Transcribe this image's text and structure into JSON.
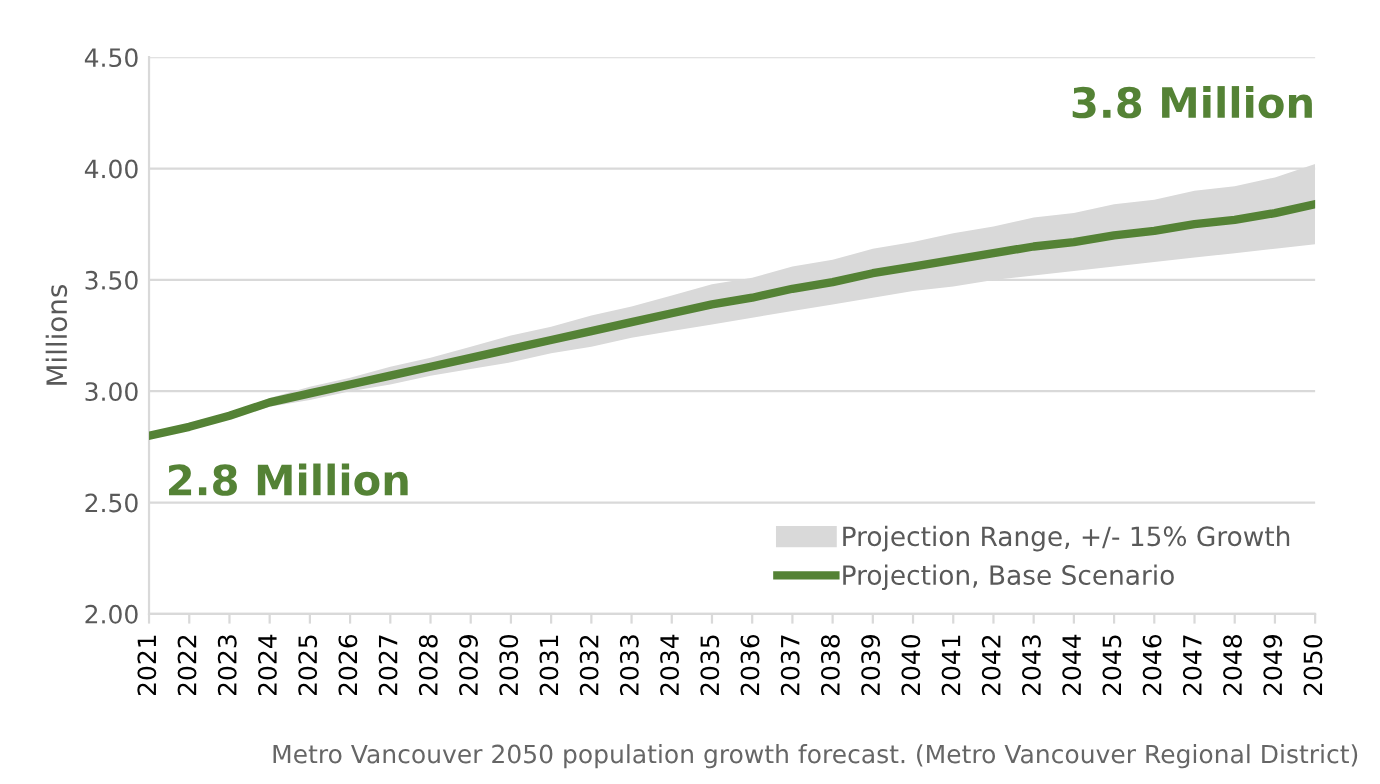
{
  "chart_data": {
    "type": "line",
    "ylabel": "Millions",
    "categories": [
      "2021",
      "2022",
      "2023",
      "2024",
      "2025",
      "2026",
      "2027",
      "2028",
      "2029",
      "2030",
      "2031",
      "2032",
      "2033",
      "2034",
      "2035",
      "2036",
      "2037",
      "2038",
      "2039",
      "2040",
      "2041",
      "2042",
      "2043",
      "2044",
      "2045",
      "2046",
      "2047",
      "2048",
      "2049",
      "2050"
    ],
    "series": [
      {
        "name": "Projection Range, +/- 15% Growth",
        "type": "area",
        "color": "#d9d9d9",
        "values": [
          null,
          null,
          null,
          null,
          null,
          null,
          null,
          null,
          null,
          null,
          null,
          null,
          null,
          null,
          null,
          null,
          null,
          null,
          null,
          null,
          null,
          null,
          null,
          null,
          null,
          null,
          null,
          null,
          null,
          null
        ]
      },
      {
        "name": "Projection, Base Scenario",
        "color": "#548235",
        "values": [
          2.8,
          2.84,
          2.89,
          2.95,
          2.99,
          3.03,
          3.07,
          3.11,
          3.15,
          3.19,
          3.23,
          3.27,
          3.31,
          3.35,
          3.39,
          3.42,
          3.46,
          3.49,
          3.53,
          3.56,
          3.59,
          3.62,
          3.65,
          3.67,
          3.7,
          3.72,
          3.75,
          3.77,
          3.8,
          3.84
        ],
        "lower": [
          2.8,
          2.83,
          2.88,
          2.93,
          2.96,
          3.0,
          3.03,
          3.07,
          3.1,
          3.13,
          3.17,
          3.2,
          3.24,
          3.27,
          3.3,
          3.33,
          3.36,
          3.39,
          3.42,
          3.45,
          3.47,
          3.5,
          3.52,
          3.54,
          3.56,
          3.58,
          3.6,
          3.62,
          3.64,
          3.66
        ],
        "upper": [
          2.8,
          2.85,
          2.9,
          2.97,
          3.02,
          3.06,
          3.11,
          3.15,
          3.2,
          3.25,
          3.29,
          3.34,
          3.38,
          3.43,
          3.48,
          3.51,
          3.56,
          3.59,
          3.64,
          3.67,
          3.71,
          3.74,
          3.78,
          3.8,
          3.84,
          3.86,
          3.9,
          3.92,
          3.96,
          4.02
        ]
      }
    ],
    "ylim": [
      2.0,
      4.5
    ],
    "yticks": [
      {
        "value": 2.0,
        "label": "2.00"
      },
      {
        "value": 2.5,
        "label": "2.50"
      },
      {
        "value": 3.0,
        "label": "3.00"
      },
      {
        "value": 3.5,
        "label": "3.50"
      },
      {
        "value": 4.0,
        "label": "4.00"
      },
      {
        "value": 4.5,
        "label": "4.50"
      }
    ],
    "grid": "y",
    "legend": "bottom right",
    "line_style": "solid",
    "marker": "none",
    "annotations": [
      {
        "text": "2.8 Million",
        "x": "2021",
        "y": 2.8
      },
      {
        "text": "3.8 Million",
        "x": "2050",
        "y": 3.84
      },
      "Metro Vancouver 2050 population growth forecast. (Metro Vancouver Regional District)"
    ]
  }
}
